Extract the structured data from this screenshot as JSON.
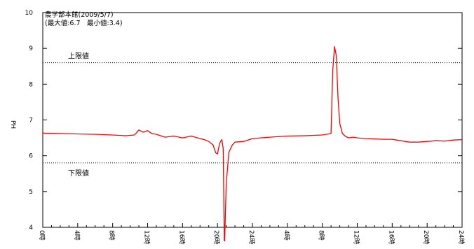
{
  "chart_data": {
    "type": "line",
    "title": "農学部本館(2009/5/7)",
    "subtitle": "(最大値:6.7　最小値:3.4)",
    "ylabel": "PH",
    "xlabel": "",
    "ylim": [
      4,
      10
    ],
    "yticks": [
      "4",
      "5",
      "6",
      "7",
      "8",
      "9",
      "10"
    ],
    "xlim": [
      0,
      48
    ],
    "xticks": [
      {
        "hour": 0,
        "label": "0時"
      },
      {
        "hour": 4,
        "label": "4時"
      },
      {
        "hour": 8,
        "label": "8時"
      },
      {
        "hour": 12,
        "label": "12時"
      },
      {
        "hour": 16,
        "label": "16時"
      },
      {
        "hour": 20,
        "label": "20時"
      },
      {
        "hour": 24,
        "label": "24時"
      },
      {
        "hour": 28,
        "label": "4時"
      },
      {
        "hour": 32,
        "label": "8時"
      },
      {
        "hour": 36,
        "label": "12時"
      },
      {
        "hour": 40,
        "label": "16時"
      },
      {
        "hour": 44,
        "label": "20時"
      },
      {
        "hour": 48,
        "label": "24時"
      }
    ],
    "reference_lines": [
      {
        "label": "上限値",
        "value": 8.6
      },
      {
        "label": "下限値",
        "value": 5.8
      }
    ],
    "line_color": "#ff0000",
    "series": [
      {
        "x": [
          0,
          2,
          4,
          6,
          8,
          9.5,
          10.5,
          11,
          11.5,
          12,
          12.5,
          13,
          14,
          15,
          16,
          17,
          18,
          18.5,
          19,
          19.5,
          19.8,
          20,
          20.2,
          20.35,
          20.5,
          20.65,
          20.8,
          21,
          21.3,
          21.7,
          22,
          23,
          24,
          26,
          28,
          30,
          32,
          33,
          33.2,
          33.4,
          33.6,
          33.8,
          34,
          34.3,
          34.6,
          35,
          35.5,
          36,
          37,
          38,
          39,
          40,
          40.5,
          41,
          42,
          43,
          44,
          45,
          46,
          47,
          48
        ],
        "y": [
          6.63,
          6.62,
          6.61,
          6.6,
          6.58,
          6.56,
          6.58,
          6.72,
          6.66,
          6.7,
          6.62,
          6.6,
          6.52,
          6.55,
          6.5,
          6.55,
          6.48,
          6.45,
          6.4,
          6.3,
          6.08,
          6.05,
          6.3,
          6.4,
          6.45,
          6.2,
          3.4,
          5.2,
          6.1,
          6.3,
          6.38,
          6.4,
          6.48,
          6.52,
          6.55,
          6.56,
          6.58,
          6.62,
          8.4,
          9.05,
          8.8,
          7.6,
          6.9,
          6.62,
          6.55,
          6.5,
          6.52,
          6.5,
          6.48,
          6.47,
          6.46,
          6.46,
          6.44,
          6.42,
          6.38,
          6.38,
          6.4,
          6.42,
          6.41,
          6.44,
          6.45
        ]
      }
    ],
    "grid": false
  }
}
